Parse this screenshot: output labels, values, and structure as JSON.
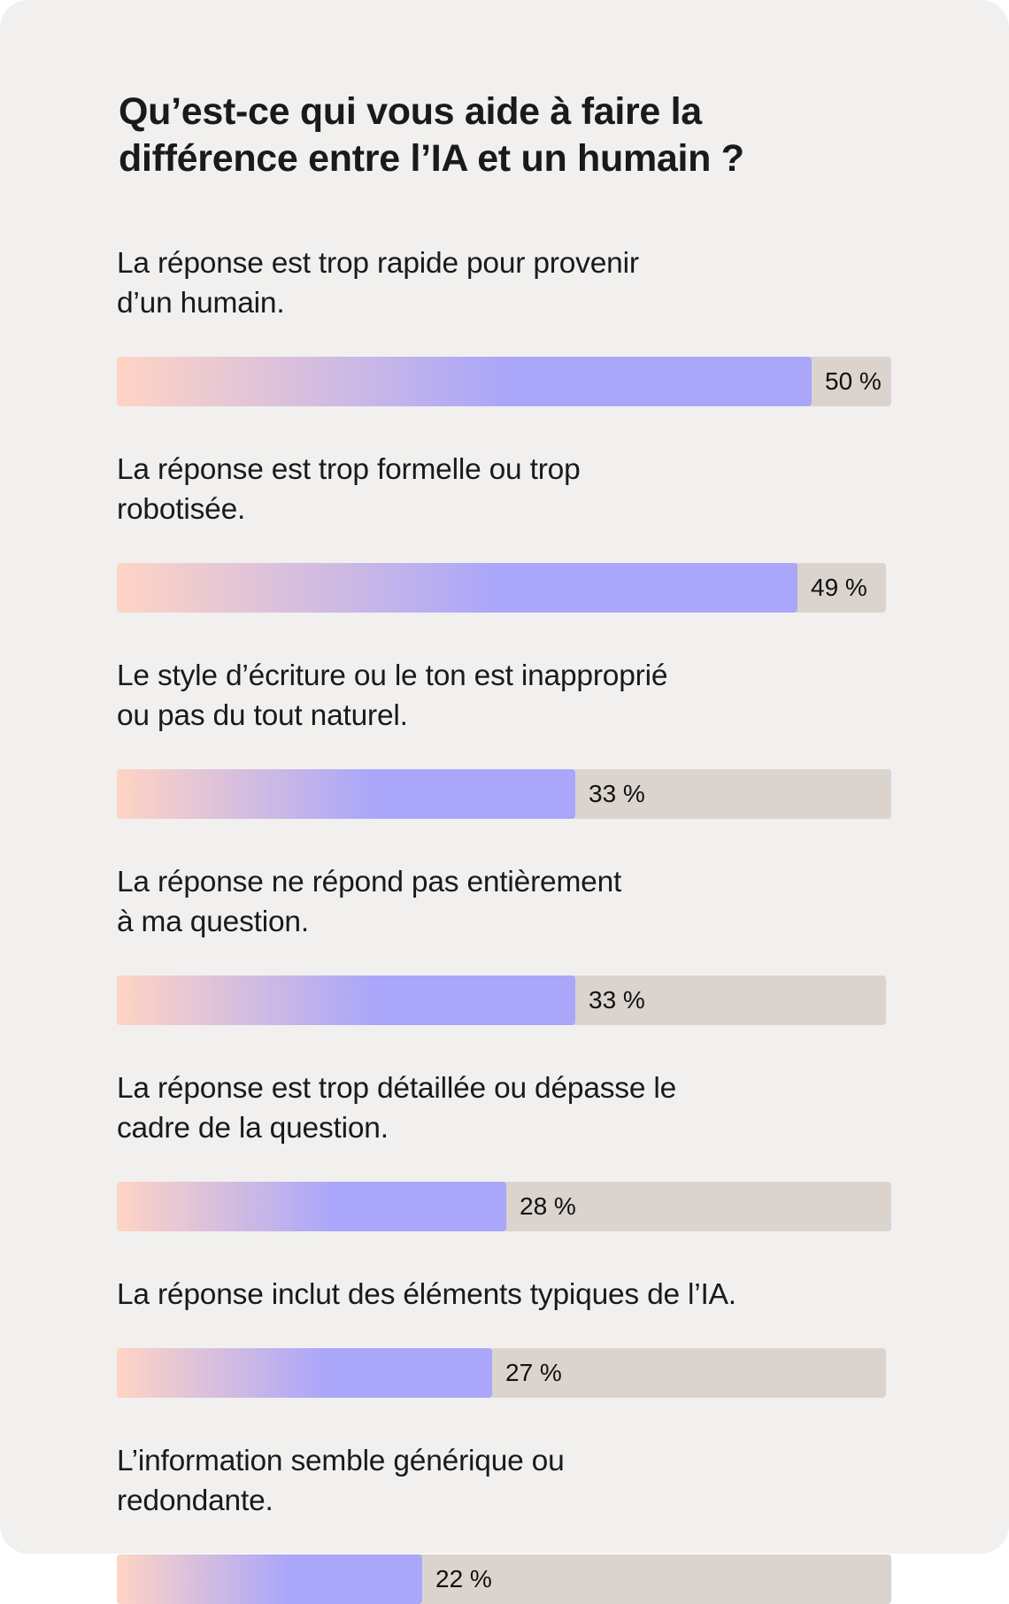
{
  "colors": {
    "background": "#f1f0ef",
    "track": "#dbd4ce",
    "fill_start": "#ffd4c4",
    "fill_end": "#aaa6fa",
    "text": "#1a1a1a"
  },
  "chart_data": {
    "type": "bar",
    "orientation": "horizontal",
    "title": "Qu’est-ce qui vous aide à faire la différence entre l’IA et un humain ?",
    "title_lines": [
      "Qu’est-ce qui vous aide à faire la",
      "différence entre l’IA et un humain ?"
    ],
    "categories": [
      "La réponse est trop rapide pour provenir d’un humain.",
      "La réponse est trop formelle ou trop robotisée.",
      "Le style d’écriture ou le ton est inapproprié ou pas du tout naturel.",
      "La réponse ne répond pas entièrement à ma question.",
      "La réponse est trop détaillée ou dépasse le cadre de la question.",
      "La réponse inclut des éléments typiques de l’IA.",
      "L’information semble générique ou redondante."
    ],
    "values": [
      50,
      49,
      33,
      33,
      28,
      27,
      22
    ],
    "xlim": [
      0,
      100
    ],
    "unit": "%",
    "grid": false,
    "legend": "none",
    "items": [
      {
        "lines": [
          "La réponse est trop rapide pour provenir",
          "d’un humain."
        ],
        "value": 50,
        "value_label": "50 %"
      },
      {
        "lines": [
          "La réponse est trop formelle ou trop",
          "robotisée."
        ],
        "value": 49,
        "value_label": "49 %"
      },
      {
        "lines": [
          "Le style d’écriture ou le ton est inapproprié",
          "ou pas du tout naturel."
        ],
        "value": 33,
        "value_label": "33 %"
      },
      {
        "lines": [
          "La réponse ne répond pas entièrement",
          "à ma question."
        ],
        "value": 33,
        "value_label": "33 %"
      },
      {
        "lines": [
          "La réponse est trop détaillée ou dépasse le",
          "cadre de la question."
        ],
        "value": 28,
        "value_label": "28 %"
      },
      {
        "lines": [
          "La réponse inclut des éléments typiques de l’IA."
        ],
        "value": 27,
        "value_label": "27 %"
      },
      {
        "lines": [
          "L’information semble générique ou",
          "redondante."
        ],
        "value": 22,
        "value_label": "22 %"
      }
    ]
  }
}
